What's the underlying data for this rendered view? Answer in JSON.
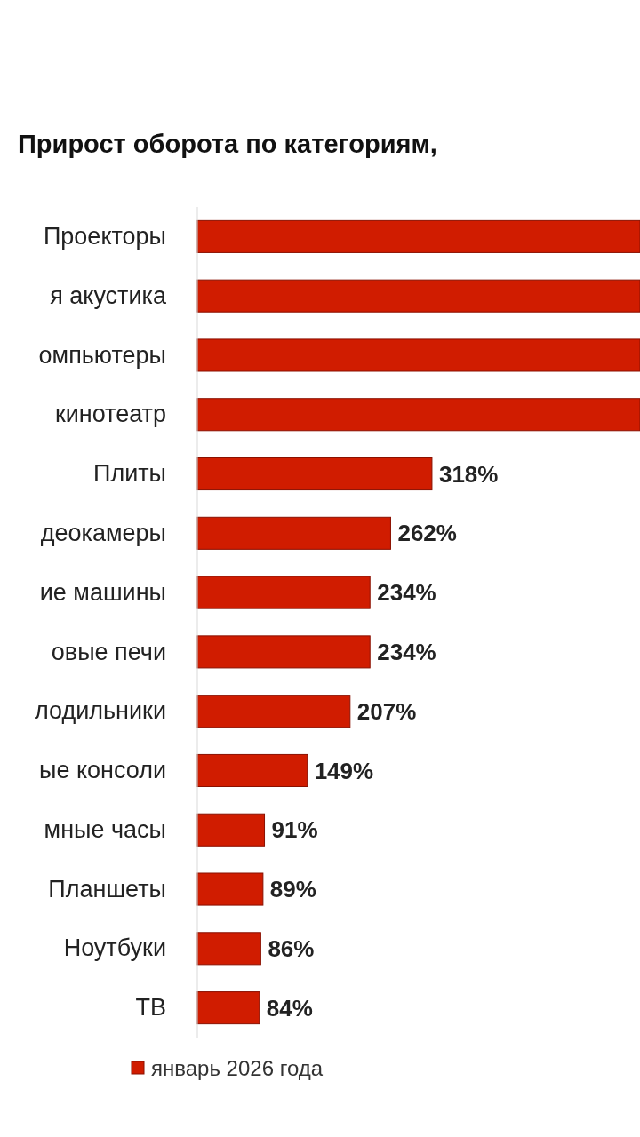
{
  "chart_data": {
    "type": "bar",
    "orientation": "horizontal",
    "title": "Прирост оборота по категориям,",
    "categories": [
      "Проекторы",
      "я акустика",
      "омпьютеры",
      "кинотеатр",
      "Плиты",
      "деокамеры",
      "ие машины",
      "овые печи",
      "лодильники",
      "ые консоли",
      "мные часы",
      "Планшеты",
      "Ноутбуки",
      "ТВ"
    ],
    "series": [
      {
        "name": "январь 2026 года",
        "color": "#d01c00",
        "values": [
          600,
          600,
          600,
          600,
          318,
          262,
          234,
          234,
          207,
          149,
          91,
          89,
          86,
          84
        ],
        "value_labels": [
          null,
          null,
          null,
          null,
          "318%",
          "262%",
          "234%",
          "234%",
          "207%",
          "149%",
          "91%",
          "89%",
          "86%",
          "84%"
        ]
      }
    ],
    "xlim": [
      0,
      600
    ],
    "tick_labels": "y",
    "legend": "bottom"
  }
}
